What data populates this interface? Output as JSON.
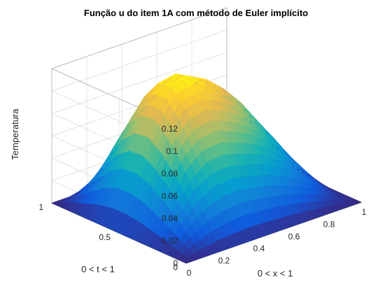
{
  "chart_data": {
    "type": "surface",
    "title": "Função u do item 1A com método de Euler implícito",
    "xlabel": "0 < x < 1",
    "ylabel": "0 < t < 1",
    "zlabel": "Temperatura",
    "xlim": [
      0,
      1
    ],
    "ylim": [
      0,
      1
    ],
    "zlim": [
      0,
      0.12
    ],
    "x_ticks": [
      "0",
      "0.2",
      "0.4",
      "0.6",
      "0.8",
      "1"
    ],
    "y_ticks": [
      "0",
      "0.5",
      "1"
    ],
    "z_ticks": [
      "0",
      "0.02",
      "0.04",
      "0.06",
      "0.08",
      "0.1",
      "0.12"
    ],
    "colormap": "parula",
    "grid": true,
    "x": [
      0,
      0.1,
      0.2,
      0.3,
      0.4,
      0.5,
      0.6,
      0.7,
      0.8,
      0.9,
      1
    ],
    "t": [
      0,
      0.1,
      0.2,
      0.3,
      0.4,
      0.5,
      0.6,
      0.7,
      0.8,
      0.9,
      1
    ],
    "u": [
      [
        0,
        0,
        0,
        0,
        0,
        0,
        0,
        0,
        0,
        0,
        0
      ],
      [
        0,
        0.012,
        0.021,
        0.026,
        0.027,
        0.025,
        0.022,
        0.018,
        0.012,
        0.006,
        0
      ],
      [
        0,
        0.024,
        0.043,
        0.053,
        0.054,
        0.05,
        0.045,
        0.036,
        0.025,
        0.012,
        0
      ],
      [
        0,
        0.034,
        0.063,
        0.078,
        0.08,
        0.074,
        0.066,
        0.053,
        0.037,
        0.019,
        0
      ],
      [
        0,
        0.043,
        0.08,
        0.1,
        0.103,
        0.096,
        0.084,
        0.068,
        0.048,
        0.025,
        0
      ],
      [
        0,
        0.048,
        0.091,
        0.114,
        0.118,
        0.11,
        0.096,
        0.078,
        0.055,
        0.028,
        0
      ],
      [
        0,
        0.047,
        0.089,
        0.112,
        0.115,
        0.107,
        0.093,
        0.075,
        0.053,
        0.027,
        0
      ],
      [
        0,
        0.039,
        0.075,
        0.095,
        0.099,
        0.092,
        0.08,
        0.064,
        0.045,
        0.023,
        0
      ],
      [
        0,
        0.026,
        0.05,
        0.064,
        0.067,
        0.062,
        0.054,
        0.043,
        0.03,
        0.015,
        0
      ],
      [
        0,
        0.012,
        0.023,
        0.03,
        0.031,
        0.029,
        0.025,
        0.02,
        0.014,
        0.007,
        0
      ],
      [
        0,
        0,
        0,
        0,
        0,
        0,
        0,
        0,
        0,
        0,
        0
      ]
    ]
  }
}
